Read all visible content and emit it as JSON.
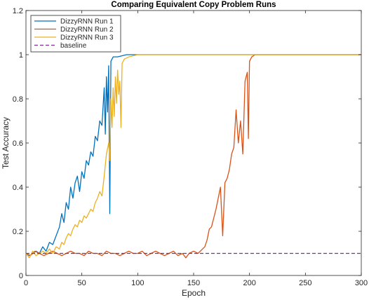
{
  "chart_data": {
    "type": "line",
    "title": "Comparing Equivalent Copy Problem Runs",
    "xlabel": "Epoch",
    "ylabel": "Test Accuracy",
    "xlim": [
      0,
      300
    ],
    "ylim": [
      0,
      1.2
    ],
    "x_ticks": [
      "0",
      "50",
      "100",
      "150",
      "200",
      "250",
      "300"
    ],
    "y_ticks": [
      "0",
      "0.2",
      "0.4",
      "0.6",
      "0.8",
      "1",
      "1.2"
    ],
    "grid": false,
    "legend_position": "top-left",
    "series": [
      {
        "name": "DizzyRNN Run 1",
        "color": "#0072BD",
        "style": "solid",
        "points": [
          [
            0,
            0.1
          ],
          [
            3,
            0.09
          ],
          [
            6,
            0.1
          ],
          [
            9,
            0.11
          ],
          [
            12,
            0.1
          ],
          [
            15,
            0.13
          ],
          [
            18,
            0.11
          ],
          [
            21,
            0.15
          ],
          [
            24,
            0.14
          ],
          [
            27,
            0.18
          ],
          [
            30,
            0.22
          ],
          [
            32,
            0.28
          ],
          [
            34,
            0.24
          ],
          [
            36,
            0.33
          ],
          [
            38,
            0.3
          ],
          [
            40,
            0.4
          ],
          [
            42,
            0.35
          ],
          [
            44,
            0.42
          ],
          [
            46,
            0.45
          ],
          [
            48,
            0.38
          ],
          [
            50,
            0.47
          ],
          [
            52,
            0.44
          ],
          [
            54,
            0.52
          ],
          [
            56,
            0.5
          ],
          [
            58,
            0.56
          ],
          [
            60,
            0.54
          ],
          [
            62,
            0.63
          ],
          [
            64,
            0.61
          ],
          [
            66,
            0.7
          ],
          [
            68,
            0.68
          ],
          [
            70,
            0.85
          ],
          [
            71,
            0.64
          ],
          [
            72,
            0.9
          ],
          [
            73,
            0.74
          ],
          [
            74,
            0.95
          ],
          [
            75,
            0.28
          ],
          [
            76,
            0.97
          ],
          [
            78,
            0.99
          ],
          [
            82,
            0.99
          ],
          [
            90,
            1.0
          ],
          [
            100,
            1.0
          ],
          [
            150,
            1.0
          ],
          [
            200,
            1.0
          ],
          [
            300,
            1.0
          ]
        ]
      },
      {
        "name": "DizzyRNN Run 2",
        "color": "#D95319",
        "style": "solid",
        "points": [
          [
            0,
            0.1
          ],
          [
            4,
            0.09
          ],
          [
            8,
            0.11
          ],
          [
            12,
            0.1
          ],
          [
            16,
            0.09
          ],
          [
            20,
            0.1
          ],
          [
            24,
            0.11
          ],
          [
            28,
            0.1
          ],
          [
            32,
            0.09
          ],
          [
            36,
            0.1
          ],
          [
            40,
            0.11
          ],
          [
            44,
            0.1
          ],
          [
            48,
            0.1
          ],
          [
            52,
            0.09
          ],
          [
            56,
            0.11
          ],
          [
            60,
            0.1
          ],
          [
            64,
            0.1
          ],
          [
            68,
            0.09
          ],
          [
            72,
            0.11
          ],
          [
            76,
            0.1
          ],
          [
            80,
            0.1
          ],
          [
            84,
            0.09
          ],
          [
            88,
            0.1
          ],
          [
            92,
            0.11
          ],
          [
            96,
            0.1
          ],
          [
            100,
            0.1
          ],
          [
            104,
            0.11
          ],
          [
            108,
            0.09
          ],
          [
            112,
            0.1
          ],
          [
            116,
            0.11
          ],
          [
            120,
            0.1
          ],
          [
            124,
            0.09
          ],
          [
            128,
            0.1
          ],
          [
            132,
            0.11
          ],
          [
            136,
            0.09
          ],
          [
            140,
            0.1
          ],
          [
            143,
            0.08
          ],
          [
            146,
            0.1
          ],
          [
            150,
            0.11
          ],
          [
            154,
            0.1
          ],
          [
            158,
            0.12
          ],
          [
            160,
            0.13
          ],
          [
            162,
            0.16
          ],
          [
            164,
            0.21
          ],
          [
            166,
            0.22
          ],
          [
            168,
            0.26
          ],
          [
            170,
            0.3
          ],
          [
            172,
            0.35
          ],
          [
            174,
            0.4
          ],
          [
            176,
            0.18
          ],
          [
            178,
            0.42
          ],
          [
            180,
            0.44
          ],
          [
            182,
            0.48
          ],
          [
            184,
            0.55
          ],
          [
            186,
            0.58
          ],
          [
            188,
            0.75
          ],
          [
            190,
            0.6
          ],
          [
            192,
            0.7
          ],
          [
            194,
            0.55
          ],
          [
            196,
            0.88
          ],
          [
            198,
            0.92
          ],
          [
            199,
            0.62
          ],
          [
            200,
            0.97
          ],
          [
            202,
            0.99
          ],
          [
            205,
            1.0
          ],
          [
            210,
            1.0
          ],
          [
            250,
            1.0
          ],
          [
            300,
            1.0
          ]
        ]
      },
      {
        "name": "DizzyRNN Run 3",
        "color": "#EDB120",
        "style": "solid",
        "points": [
          [
            0,
            0.1
          ],
          [
            3,
            0.08
          ],
          [
            6,
            0.11
          ],
          [
            9,
            0.09
          ],
          [
            12,
            0.1
          ],
          [
            15,
            0.11
          ],
          [
            18,
            0.1
          ],
          [
            21,
            0.12
          ],
          [
            24,
            0.1
          ],
          [
            27,
            0.13
          ],
          [
            30,
            0.12
          ],
          [
            32,
            0.15
          ],
          [
            34,
            0.14
          ],
          [
            36,
            0.17
          ],
          [
            38,
            0.19
          ],
          [
            40,
            0.18
          ],
          [
            42,
            0.21
          ],
          [
            44,
            0.23
          ],
          [
            46,
            0.22
          ],
          [
            48,
            0.25
          ],
          [
            50,
            0.24
          ],
          [
            52,
            0.27
          ],
          [
            54,
            0.26
          ],
          [
            56,
            0.28
          ],
          [
            58,
            0.3
          ],
          [
            60,
            0.29
          ],
          [
            62,
            0.33
          ],
          [
            64,
            0.35
          ],
          [
            66,
            0.38
          ],
          [
            68,
            0.36
          ],
          [
            70,
            0.45
          ],
          [
            72,
            0.55
          ],
          [
            74,
            0.6
          ],
          [
            75,
            0.52
          ],
          [
            76,
            0.8
          ],
          [
            77,
            0.67
          ],
          [
            78,
            0.85
          ],
          [
            79,
            0.72
          ],
          [
            80,
            0.9
          ],
          [
            81,
            0.78
          ],
          [
            82,
            0.93
          ],
          [
            83,
            0.82
          ],
          [
            84,
            0.88
          ],
          [
            85,
            0.67
          ],
          [
            86,
            0.96
          ],
          [
            88,
            0.98
          ],
          [
            92,
            0.99
          ],
          [
            100,
            1.0
          ],
          [
            150,
            1.0
          ],
          [
            200,
            1.0
          ],
          [
            300,
            1.0
          ]
        ]
      },
      {
        "name": "baseline",
        "color": "#7E2F8E",
        "style": "dashed",
        "points": [
          [
            0,
            0.1
          ],
          [
            300,
            0.1
          ]
        ]
      }
    ]
  }
}
